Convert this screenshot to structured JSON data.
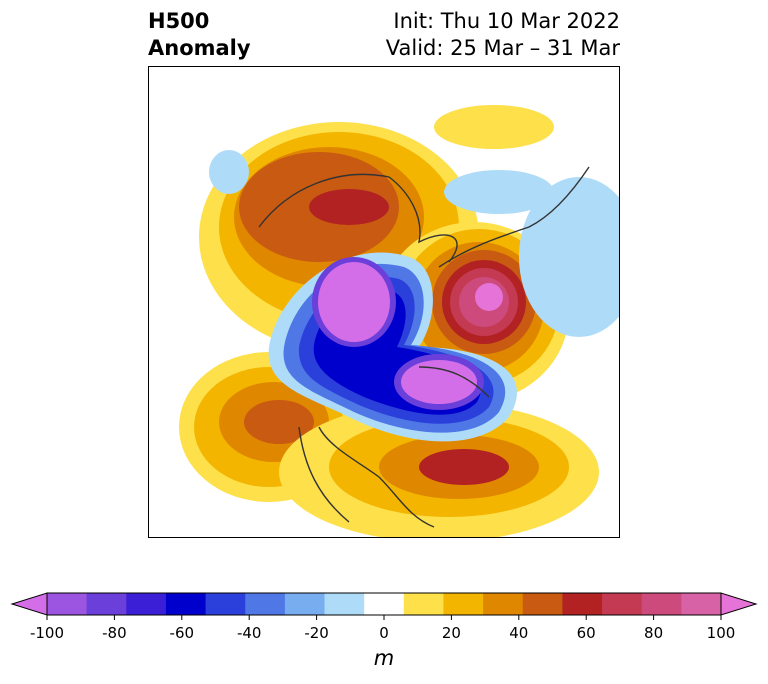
{
  "title": {
    "left_line1": "H500",
    "left_line2": "Anomaly",
    "right_line1": "Init: Thu 10 Mar 2022",
    "right_line2": "Valid: 25 Mar – 31 Mar"
  },
  "colorbar": {
    "unit": "m",
    "ticks": [
      "-100",
      "-80",
      "-60",
      "-40",
      "-20",
      "0",
      "20",
      "40",
      "60",
      "80",
      "100"
    ],
    "colors": [
      "#d36ee8",
      "#9b55e0",
      "#6a3fda",
      "#3a1fd6",
      "#0000cc",
      "#2b3fdb",
      "#4f78e6",
      "#78aef0",
      "#aedcf8",
      "#ffffff",
      "#fde04a",
      "#f3b500",
      "#e08700",
      "#c85a12",
      "#b22222",
      "#c43a52",
      "#cc4b7c",
      "#d862a6",
      "#e673d8"
    ]
  },
  "palette": {
    "neg_100": "#d36ee8",
    "neg_50": "#0000cc",
    "neg_20": "#4f78e6",
    "neg_10": "#aedcf8",
    "pos_10": "#fde04a",
    "pos_20": "#f3b500",
    "pos_30": "#e08700",
    "pos_40": "#c85a12",
    "pos_50": "#b22222",
    "pos_70": "#cc4b7c",
    "pos_90": "#e673d8"
  }
}
